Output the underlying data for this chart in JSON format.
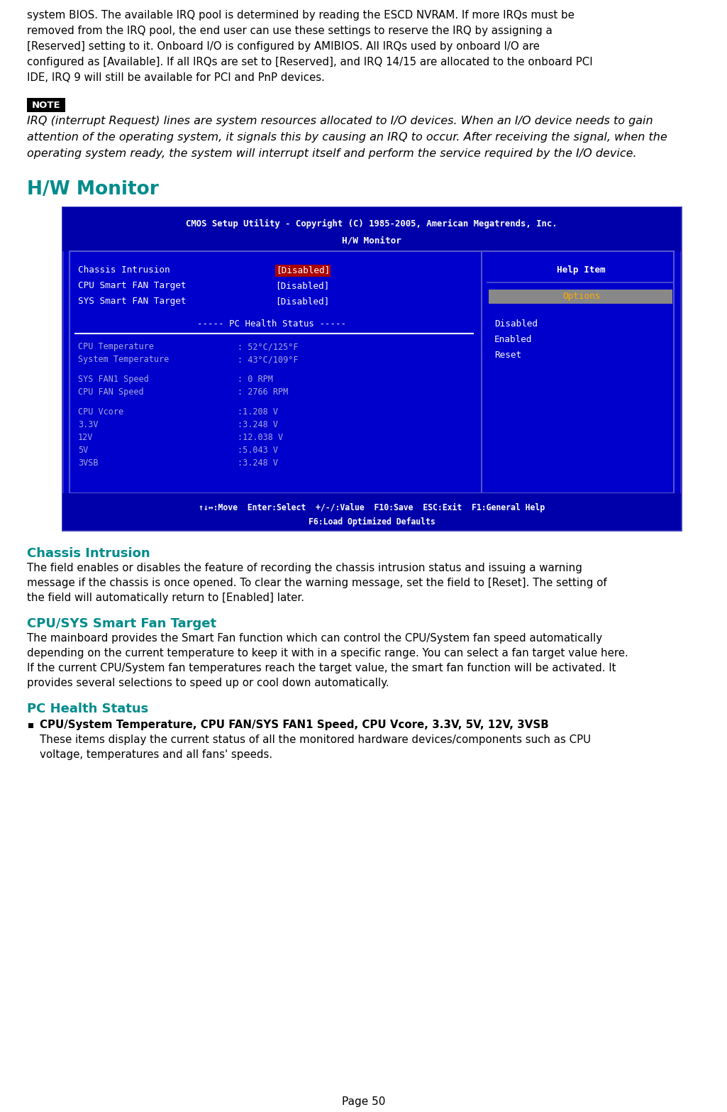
{
  "page_number": "Page 50",
  "top_text_lines": [
    "system BIOS. The available IRQ pool is determined by reading the ESCD NVRAM. If more IRQs must be",
    "removed from the IRQ pool, the end user can use these settings to reserve the IRQ by assigning a",
    "[Reserved] setting to it. Onboard I/O is configured by AMIBIOS. All IRQs used by onboard I/O are",
    "configured as [Available]. If all IRQs are set to [Reserved], and IRQ 14/15 are allocated to the onboard PCI",
    "IDE, IRQ 9 will still be available for PCI and PnP devices."
  ],
  "note_label": "NOTE",
  "note_text_lines": [
    "IRQ (interrupt Request) lines are system resources allocated to I/O devices. When an I/O device needs to gain",
    "attention of the operating system, it signals this by causing an IRQ to occur. After receiving the signal, when the",
    "operating system ready, the system will interrupt itself and perform the service required by the I/O device."
  ],
  "hw_monitor_title": "H/W Monitor",
  "bios_title_line1": "CMOS Setup Utility - Copyright (C) 1985-2005, American Megatrends, Inc.",
  "bios_title_line2": "H/W Monitor",
  "bios_item1_label": "Chassis Intrusion",
  "bios_item1_value": "[Disabled]",
  "bios_item2_label": "CPU Smart FAN Target",
  "bios_item2_value": "[Disabled]",
  "bios_item3_label": "SYS Smart FAN Target",
  "bios_item3_value": "[Disabled]",
  "bios_health_header": "----- PC Health Status -----",
  "bios_health_items": [
    [
      "CPU Temperature",
      ": 52°C/125°F"
    ],
    [
      "System Temperature",
      ": 43°C/109°F"
    ],
    [
      "SYS FAN1 Speed",
      ": 0 RPM"
    ],
    [
      "CPU FAN Speed",
      ": 2766 RPM"
    ],
    [
      "CPU Vcore",
      ":1.208 V"
    ],
    [
      "3.3V",
      ":3.248 V"
    ],
    [
      "12V",
      ":12.038 V"
    ],
    [
      "5V",
      ":5.043 V"
    ],
    [
      "3VSB",
      ":3.248 V"
    ]
  ],
  "bios_right_help": "Help Item",
  "bios_right_options": "Options",
  "bios_right_list": [
    "Disabled",
    "Enabled",
    "Reset"
  ],
  "bios_footer1": "↑↓↔:Move  Enter:Select  +/-/:Value  F10:Save  ESC:Exit  F1:General Help",
  "bios_footer2": "F6:Load Optimized Defaults",
  "section_chassis_title": "Chassis Intrusion",
  "section_chassis_text": [
    "The field enables or disables the feature of recording the chassis intrusion status and issuing a warning",
    "message if the chassis is once opened. To clear the warning message, set the field to [Reset]. The setting of",
    "the field will automatically return to [Enabled] later."
  ],
  "section_fan_title": "CPU/SYS Smart Fan Target",
  "section_fan_text": [
    "The mainboard provides the Smart Fan function which can control the CPU/System fan speed automatically",
    "depending on the current temperature to keep it with in a specific range. You can select a fan target value here.",
    "If the current CPU/System fan temperatures reach the target value, the smart fan function will be activated. It",
    "provides several selections to speed up or cool down automatically."
  ],
  "section_health_title": "PC Health Status",
  "health_bullet_text": "CPU/System Temperature, CPU FAN/SYS FAN1 Speed, CPU Vcore, 3.3V, 5V, 12V, 3VSB",
  "health_sub_lines": [
    "These items display the current status of all the monitored hardware devices/components such as CPU",
    "voltage, temperatures and all fans' speeds."
  ],
  "teal_color": "#008B8B",
  "bios_bg": "#0000CC",
  "bios_dark_bg": "#0000AA"
}
